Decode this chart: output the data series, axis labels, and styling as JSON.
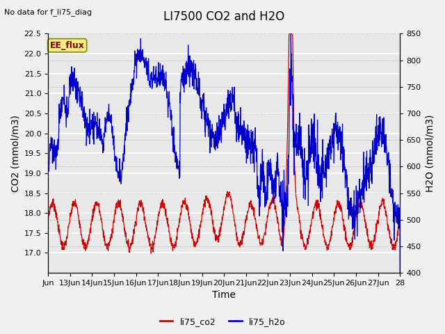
{
  "title": "LI7500 CO2 and H2O",
  "top_left_text": "No data for f_li75_diag",
  "ylabel_left": "CO2 (mmol/m3)",
  "ylabel_right": "H2O (mmol/m3)",
  "xlabel": "Time",
  "ylim_left": [
    16.5,
    22.5
  ],
  "ylim_right": [
    400,
    850
  ],
  "xtick_labels": [
    "Jun",
    "13Jun",
    "14Jun",
    "15Jun",
    "16Jun",
    "17Jun",
    "18Jun",
    "19Jun",
    "20Jun",
    "21Jun",
    "22Jun",
    "23Jun",
    "24Jun",
    "25Jun",
    "26Jun",
    "27Jun",
    "28"
  ],
  "legend_labels": [
    "li75_co2",
    "li75_h2o"
  ],
  "legend_colors": [
    "#cc0000",
    "#0000cc"
  ],
  "co2_color": "#cc0000",
  "h2o_color": "#0000cc",
  "label_box_text": "EE_flux",
  "label_box_facecolor": "#eeee88",
  "label_box_edgecolor": "#888800",
  "plot_bg_color": "#e8e8e8",
  "fig_bg_color": "#f0f0f0",
  "grid_color": "#ffffff",
  "right_grid_color": "#aaaaaa",
  "title_fontsize": 12,
  "axis_label_fontsize": 10,
  "tick_fontsize": 8,
  "annot_fontsize": 8
}
